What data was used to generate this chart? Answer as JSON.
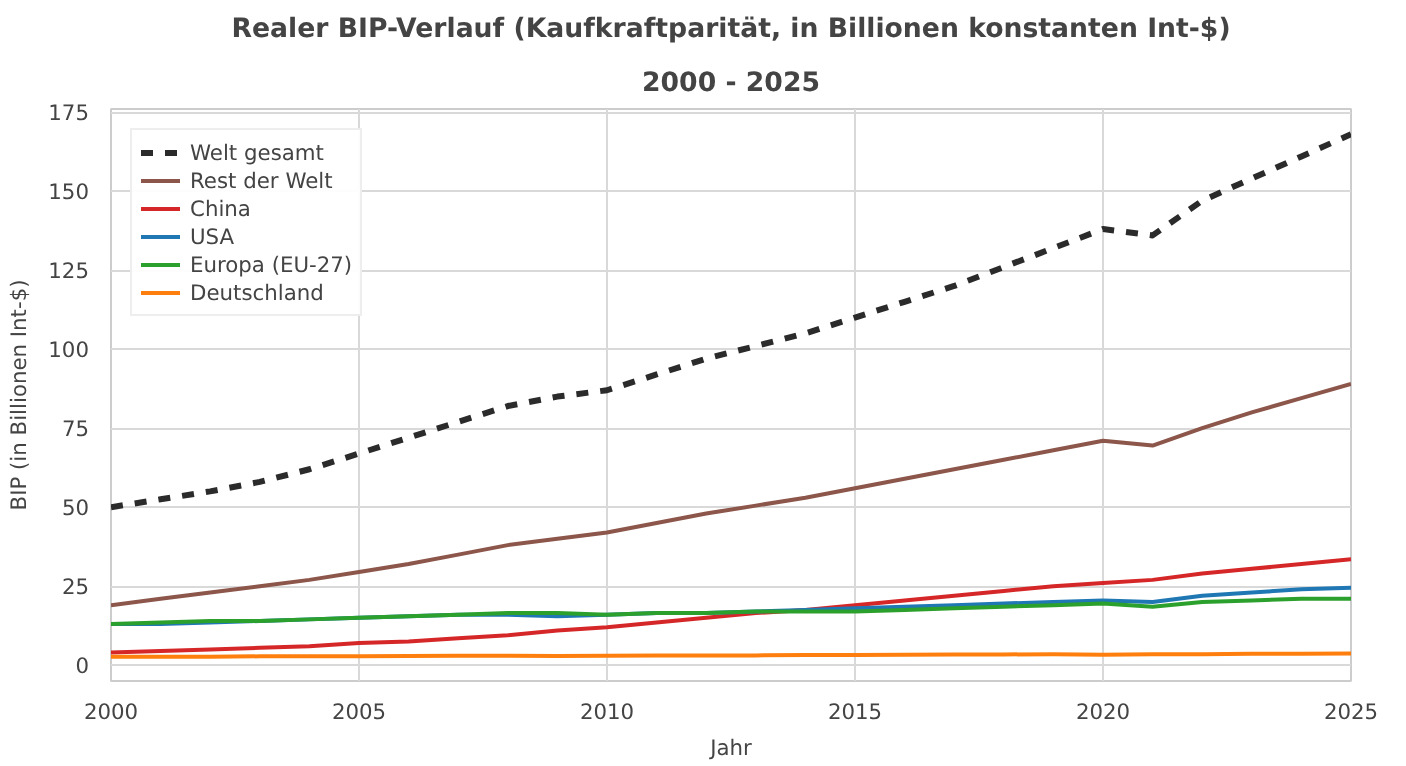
{
  "chart_data": {
    "type": "line",
    "title": "Realer BIP-Verlauf (Kaufkraftparität, in Billionen konstanten Int-$)",
    "subtitle": "2000 - 2025",
    "xlabel": "Jahr",
    "ylabel": "BIP (in Billionen Int-$)",
    "x": [
      2000,
      2001,
      2002,
      2003,
      2004,
      2005,
      2006,
      2007,
      2008,
      2009,
      2010,
      2011,
      2012,
      2013,
      2014,
      2015,
      2016,
      2017,
      2018,
      2019,
      2020,
      2021,
      2022,
      2023,
      2024,
      2025
    ],
    "xlim": [
      2000,
      2025
    ],
    "xticks": [
      2000,
      2005,
      2010,
      2015,
      2020,
      2025
    ],
    "ylim": [
      -5,
      176
    ],
    "yticks": [
      0,
      25,
      50,
      75,
      100,
      125,
      150,
      175
    ],
    "grid": true,
    "legend": "top left",
    "series": [
      {
        "name": "Welt gesamt",
        "color": "#2b2b2b",
        "line_style": "dashed",
        "values": [
          50,
          52.5,
          55,
          58,
          62,
          67,
          72,
          77,
          82,
          85,
          87,
          92,
          97,
          101,
          105,
          110,
          115,
          120,
          126,
          132,
          138,
          136,
          147,
          154,
          161,
          168
        ]
      },
      {
        "name": "Rest der Welt",
        "color": "#8c564b",
        "values": [
          19,
          21,
          23,
          25,
          27,
          29.5,
          32,
          35,
          38,
          40,
          42,
          45,
          48,
          50.5,
          53,
          56,
          59,
          62,
          65,
          68,
          71,
          69.5,
          75,
          80,
          84.5,
          89
        ]
      },
      {
        "name": "China",
        "color": "#d62728",
        "values": [
          4,
          4.5,
          5,
          5.5,
          6,
          7,
          7.5,
          8.5,
          9.5,
          11,
          12,
          13.5,
          15,
          16.5,
          17.5,
          19,
          20.5,
          22,
          23.5,
          25,
          26,
          27,
          29,
          30.5,
          32,
          33.5
        ]
      },
      {
        "name": "USA",
        "color": "#1f77b4",
        "values": [
          13,
          13,
          13.5,
          14,
          14.5,
          15,
          15.5,
          16,
          16,
          15.5,
          16,
          16.5,
          16.5,
          17,
          17.5,
          18,
          18.5,
          19,
          19.5,
          20,
          20.5,
          20,
          22,
          23,
          24,
          24.5
        ]
      },
      {
        "name": "Europa (EU-27)",
        "color": "#2ca02c",
        "values": [
          13,
          13.5,
          14,
          14,
          14.5,
          15,
          15.5,
          16,
          16.5,
          16.5,
          16,
          16.5,
          16.5,
          17,
          17,
          17,
          17.5,
          18,
          18.5,
          19,
          19.5,
          18.5,
          20,
          20.5,
          21,
          21
        ]
      },
      {
        "name": "Deutschland",
        "color": "#ff7f0e",
        "values": [
          2.7,
          2.7,
          2.7,
          2.8,
          2.8,
          2.8,
          2.9,
          3,
          3,
          2.9,
          3,
          3.1,
          3.1,
          3.1,
          3.2,
          3.2,
          3.3,
          3.4,
          3.4,
          3.5,
          3.3,
          3.5,
          3.5,
          3.6,
          3.6,
          3.7
        ]
      }
    ]
  }
}
